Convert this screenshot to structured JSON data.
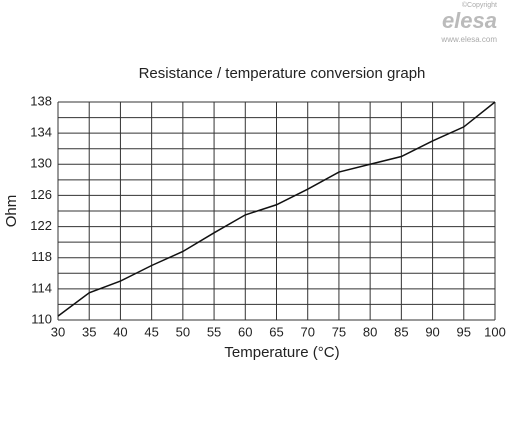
{
  "chart_data": {
    "type": "line",
    "title": "Resistance / temperature conversion graph",
    "x_label": "Temperature (°C)",
    "y_label": "Ohm",
    "x": [
      30,
      35,
      40,
      45,
      50,
      55,
      60,
      65,
      70,
      75,
      80,
      85,
      90,
      95,
      100
    ],
    "series": [
      {
        "name": "Resistance",
        "color": "#111111",
        "values": [
          110.5,
          113.5,
          115,
          117,
          118.8,
          121.2,
          123.5,
          124.8,
          126.8,
          129,
          130,
          131,
          133,
          134.8,
          138
        ]
      }
    ],
    "xlim": [
      30,
      100
    ],
    "xticks": [
      30,
      35,
      40,
      45,
      50,
      55,
      60,
      65,
      70,
      75,
      80,
      85,
      90,
      95,
      100
    ],
    "ylim": [
      110,
      138
    ],
    "yticks": [
      110,
      114,
      118,
      122,
      126,
      130,
      134,
      138
    ],
    "y_minor_grid": [
      112,
      116,
      120,
      124,
      128,
      132,
      136
    ],
    "grid": true
  },
  "watermark": {
    "copyright": "©Copyright",
    "brand": "elesa",
    "url": "www.elesa.com"
  }
}
